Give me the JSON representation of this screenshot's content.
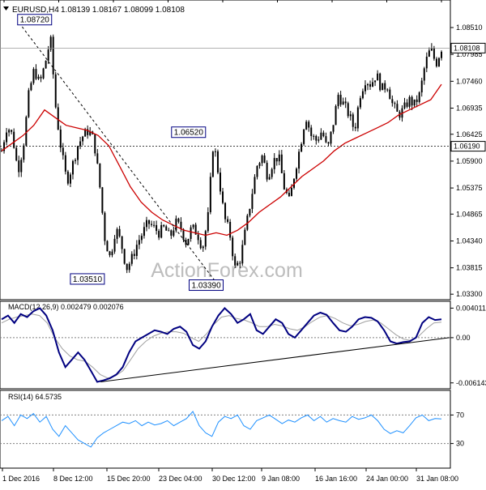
{
  "header": {
    "symbol": "EURUSD,H4",
    "ohlc": "1.08139 1.08167 1.08099 1.08108"
  },
  "watermark": "ActionForex.com",
  "colors": {
    "candles": "#000000",
    "moving_average": "#cc0000",
    "macd_main": "#000080",
    "macd_signal": "#a0a0a0",
    "rsi_line": "#1e90ff",
    "grid": "#808080",
    "trendline": "#000000"
  },
  "chart_data": [
    {
      "type": "candlestick",
      "panel": "price",
      "title": "EURUSD,H4",
      "ylim": [
        1.0324,
        1.087
      ],
      "y_ticks": [
        "1.08510",
        "1.07985",
        "1.07460",
        "1.06935",
        "1.06425",
        "1.05900",
        "1.05375",
        "1.04865",
        "1.04340",
        "1.03815",
        "1.03300"
      ],
      "x_ticks": [
        "1 Dec 2016",
        "8 Dec 12:00",
        "15 Dec 20:00",
        "23 Dec 04:00",
        "30 Dec 12:00",
        "9 Jan 08:00",
        "16 Jan 16:00",
        "24 Jan 00:00",
        "31 Jan 08:00"
      ],
      "close_path": [
        1.061,
        1.066,
        1.064,
        1.057,
        1.062,
        1.072,
        1.077,
        1.074,
        1.078,
        1.083,
        1.069,
        1.061,
        1.055,
        1.058,
        1.062,
        1.064,
        1.065,
        1.063,
        1.055,
        1.044,
        1.04,
        1.046,
        1.043,
        1.038,
        1.04,
        1.043,
        1.045,
        1.047,
        1.046,
        1.045,
        1.046,
        1.044,
        1.047,
        1.046,
        1.043,
        1.046,
        1.045,
        1.042,
        1.048,
        1.063,
        1.056,
        1.048,
        1.045,
        1.038,
        1.04,
        1.046,
        1.052,
        1.058,
        1.06,
        1.056,
        1.059,
        1.06,
        1.054,
        1.051,
        1.057,
        1.062,
        1.068,
        1.064,
        1.063,
        1.065,
        1.061,
        1.066,
        1.072,
        1.07,
        1.068,
        1.065,
        1.072,
        1.075,
        1.074,
        1.076,
        1.073,
        1.074,
        1.07,
        1.068,
        1.069,
        1.071,
        1.07,
        1.072,
        1.078,
        1.081,
        1.078,
        1.0811
      ],
      "moving_average_path": [
        1.061,
        1.0625,
        1.064,
        1.066,
        1.069,
        1.0675,
        1.066,
        1.0655,
        1.065,
        1.064,
        1.062,
        1.058,
        1.054,
        1.051,
        1.049,
        1.0475,
        1.0465,
        1.0455,
        1.045,
        1.0445,
        1.045,
        1.0445,
        1.0455,
        1.047,
        1.049,
        1.0505,
        1.052,
        1.054,
        1.056,
        1.0575,
        1.059,
        1.061,
        1.0625,
        1.0635,
        1.0645,
        1.0655,
        1.0665,
        1.068,
        1.069,
        1.07,
        1.071,
        1.074
      ],
      "price_labels": [
        {
          "price": 1.08108,
          "text": "1.08108",
          "style": "current"
        },
        {
          "price": 1.0619,
          "text": "1.06190",
          "style": "level"
        }
      ],
      "annotations": [
        {
          "text": "1.08720",
          "price": 1.0872,
          "x_frac": 0.11
        },
        {
          "text": "1.06520",
          "price": 1.0652,
          "x_frac": 0.46
        },
        {
          "text": "1.03510",
          "price": 1.0351,
          "x_frac": 0.23
        },
        {
          "text": "1.03390",
          "price": 1.0339,
          "x_frac": 0.5
        }
      ]
    },
    {
      "type": "line",
      "panel": "macd",
      "title": "MACD(12,26,9) 0.002479 0.002076",
      "ylim": [
        -0.0065,
        0.0045
      ],
      "y_ticks": [
        "0.004011",
        "0.00",
        "-0.006143"
      ],
      "main_path": [
        0.0025,
        0.003,
        0.002,
        0.0032,
        0.0028,
        0.0036,
        0.004,
        0.003,
        0.001,
        -0.002,
        -0.004,
        -0.003,
        -0.002,
        -0.003,
        -0.0045,
        -0.006,
        -0.0058,
        -0.0055,
        -0.005,
        -0.004,
        -0.002,
        -0.0005,
        0.0,
        0.0005,
        0.001,
        0.0008,
        0.0005,
        0.0012,
        0.0015,
        0.0008,
        -0.001,
        -0.0015,
        -0.0005,
        0.0015,
        0.003,
        0.004,
        0.0032,
        0.002,
        0.0025,
        0.0032,
        0.001,
        0.0005,
        0.0015,
        0.0025,
        0.002,
        0.0005,
        0.0,
        0.001,
        0.002,
        0.003,
        0.0034,
        0.0031,
        0.002,
        0.001,
        0.0008,
        0.0015,
        0.0025,
        0.0028,
        0.0027,
        0.0022,
        0.001,
        -0.0005,
        -0.0008,
        -0.0006,
        -0.0005,
        0.0,
        0.002,
        0.0028,
        0.0024,
        0.0025
      ],
      "signal_path": [
        0.002,
        0.0025,
        0.0028,
        0.003,
        0.0032,
        0.003,
        0.002,
        0.0,
        -0.0015,
        -0.0025,
        -0.003,
        -0.0032,
        -0.004,
        -0.005,
        -0.0055,
        -0.0052,
        -0.0045,
        -0.003,
        -0.0015,
        -0.0005,
        0.0002,
        0.0006,
        0.0008,
        0.0008,
        0.0006,
        0.0,
        -0.0005,
        0.0005,
        0.0018,
        0.0028,
        0.003,
        0.0026,
        0.0024,
        0.002,
        0.0015,
        0.0015,
        0.0018,
        0.0016,
        0.0012,
        0.001,
        0.0015,
        0.0022,
        0.0028,
        0.003,
        0.0026,
        0.002,
        0.0016,
        0.0018,
        0.0022,
        0.0024,
        0.002,
        0.0012,
        0.0004,
        -0.0002,
        -0.0004,
        0.0002,
        0.0012,
        0.002,
        0.0021
      ],
      "trendline": {
        "from": {
          "x_frac": 0.225,
          "value": -0.006
        },
        "to": {
          "x_frac": 1.0,
          "value": 0.0
        }
      }
    },
    {
      "type": "line",
      "panel": "rsi",
      "title": "RSI(14) 64.5735",
      "ylim": [
        0,
        100
      ],
      "y_ticks": [
        "70",
        "30"
      ],
      "levels": [
        70,
        30
      ],
      "path": [
        62,
        68,
        55,
        70,
        65,
        72,
        60,
        68,
        50,
        40,
        55,
        45,
        35,
        30,
        25,
        38,
        45,
        50,
        55,
        60,
        58,
        62,
        55,
        60,
        56,
        58,
        62,
        55,
        60,
        65,
        75,
        55,
        45,
        40,
        60,
        68,
        65,
        70,
        55,
        50,
        62,
        66,
        70,
        64,
        58,
        63,
        60,
        66,
        70,
        62,
        68,
        60,
        65,
        62,
        60,
        68,
        64,
        66,
        70,
        62,
        50,
        44,
        48,
        45,
        55,
        66,
        70,
        62,
        65,
        64.5
      ]
    }
  ]
}
